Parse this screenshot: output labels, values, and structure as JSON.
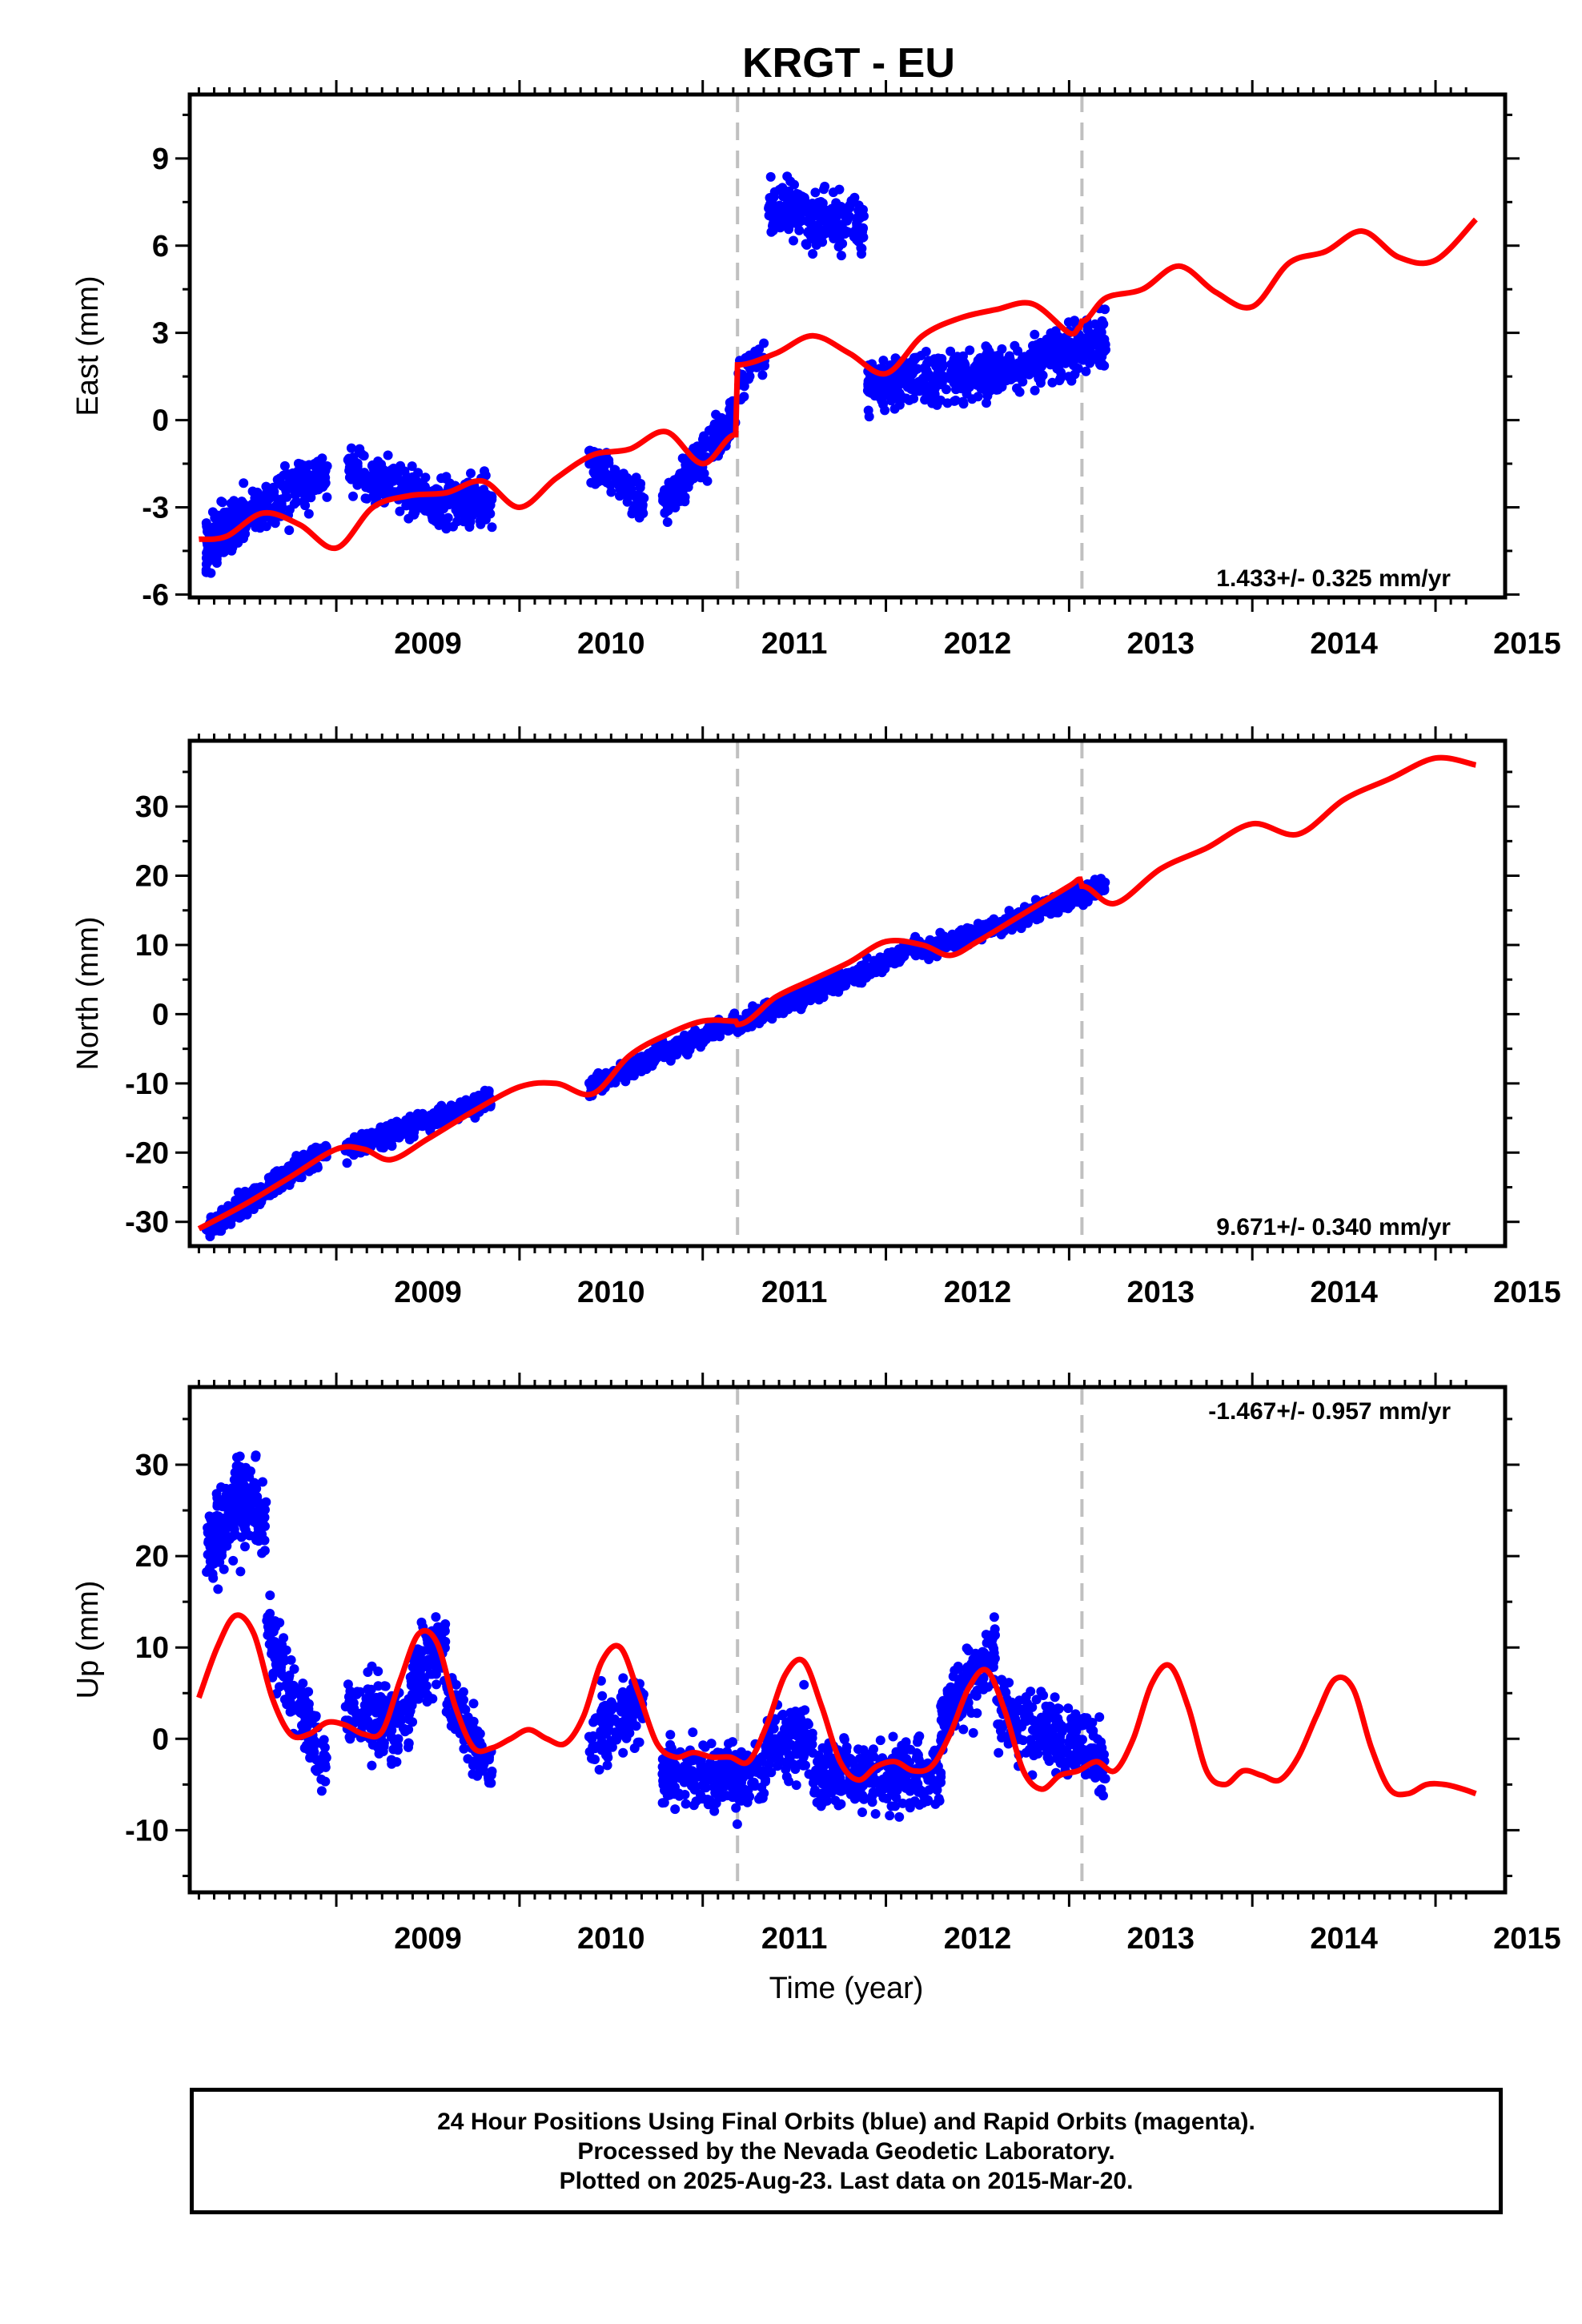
{
  "title": "KRGT - EU",
  "xlabel": "Time (year)",
  "caption": [
    "24 Hour Positions Using Final Orbits (blue) and Rapid Orbits (magenta).",
    "Processed by the Nevada Geodetic Laboratory.",
    "Plotted on 2025-Aug-23. Last data on 2015-Mar-20."
  ],
  "colors": {
    "final_orbits": "#0000ff",
    "model": "#ff0000",
    "equipment_change": "#c0c0c0",
    "frame": "#000000"
  },
  "chart_data": [
    {
      "type": "scatter",
      "ylabel": "East (mm)",
      "rate_label": "1.433+/- 0.325 mm/yr",
      "xlim": [
        2008.2,
        2015.38
      ],
      "ylim": [
        -6.1,
        11.2
      ],
      "x_ticks": [
        "2009",
        "2010",
        "2011",
        "2012",
        "2013",
        "2014",
        "2015"
      ],
      "y_ticks": [
        "-6",
        "-3",
        "0",
        "3",
        "6",
        "9"
      ],
      "grid": false,
      "equipment_changes": [
        2011.19,
        2013.07
      ],
      "model": {
        "name": "model",
        "x": [
          2008.25,
          2008.4,
          2008.6,
          2008.8,
          2009.0,
          2009.2,
          2009.4,
          2009.6,
          2009.8,
          2010.0,
          2010.2,
          2010.4,
          2010.6,
          2010.8,
          2011.0,
          2011.18,
          2011.19,
          2011.4,
          2011.6,
          2011.8,
          2012.0,
          2012.2,
          2012.4,
          2012.6,
          2012.8,
          2013.0,
          2013.06,
          2013.07,
          2013.2,
          2013.4,
          2013.6,
          2013.8,
          2014.0,
          2014.2,
          2014.4,
          2014.6,
          2014.8,
          2015.0,
          2015.22
        ],
        "y": [
          -4.1,
          -4.0,
          -3.2,
          -3.6,
          -4.4,
          -3.0,
          -2.6,
          -2.5,
          -2.1,
          -3.0,
          -2.0,
          -1.2,
          -1.0,
          -0.4,
          -1.5,
          -0.5,
          1.9,
          2.3,
          2.9,
          2.3,
          1.6,
          2.9,
          3.5,
          3.8,
          4.0,
          3.0,
          3.2,
          3.4,
          4.2,
          4.5,
          5.3,
          4.4,
          3.9,
          5.4,
          5.8,
          6.5,
          5.6,
          5.5,
          6.9
        ]
      },
      "segments": [
        {
          "x0": 2008.29,
          "x1": 2008.5,
          "y0": -4.4,
          "y1": -3.2,
          "spread": 1.5,
          "n": 160
        },
        {
          "x0": 2008.5,
          "x1": 2008.95,
          "y0": -3.2,
          "y1": -1.9,
          "spread": 1.3,
          "n": 200
        },
        {
          "x0": 2009.05,
          "x1": 2009.45,
          "y0": -1.6,
          "y1": -2.6,
          "spread": 1.3,
          "n": 150
        },
        {
          "x0": 2009.45,
          "x1": 2009.85,
          "y0": -2.7,
          "y1": -2.8,
          "spread": 1.2,
          "n": 190
        },
        {
          "x0": 2010.38,
          "x1": 2010.68,
          "y0": -1.3,
          "y1": -2.8,
          "spread": 1.1,
          "n": 110
        },
        {
          "x0": 2010.78,
          "x1": 2011.18,
          "y0": -2.8,
          "y1": 0.2,
          "spread": 1.1,
          "n": 180
        },
        {
          "x0": 2011.19,
          "x1": 2011.34,
          "y0": 1.5,
          "y1": 2.2,
          "spread": 1.0,
          "n": 40
        },
        {
          "x0": 2011.36,
          "x1": 2011.88,
          "y0": 7.3,
          "y1": 6.6,
          "spread": 1.5,
          "n": 230
        },
        {
          "x0": 2011.9,
          "x1": 2012.7,
          "y0": 1.2,
          "y1": 1.8,
          "spread": 1.3,
          "n": 380
        },
        {
          "x0": 2012.7,
          "x1": 2013.2,
          "y0": 1.8,
          "y1": 2.8,
          "spread": 1.3,
          "n": 230
        }
      ]
    },
    {
      "type": "scatter",
      "ylabel": "North (mm)",
      "rate_label": "9.671+/- 0.340 mm/yr",
      "xlim": [
        2008.2,
        2015.38
      ],
      "ylim": [
        -33.5,
        39.5
      ],
      "x_ticks": [
        "2009",
        "2010",
        "2011",
        "2012",
        "2013",
        "2014",
        "2015"
      ],
      "y_ticks": [
        "-30",
        "-20",
        "-10",
        "0",
        "10",
        "20",
        "30"
      ],
      "grid": false,
      "equipment_changes": [
        2011.19,
        2013.07
      ],
      "model": {
        "name": "model",
        "x": [
          2008.25,
          2008.5,
          2008.75,
          2009.0,
          2009.15,
          2009.3,
          2009.5,
          2009.75,
          2010.0,
          2010.2,
          2010.4,
          2010.6,
          2010.8,
          2011.0,
          2011.18,
          2011.19,
          2011.4,
          2011.6,
          2011.8,
          2012.0,
          2012.2,
          2012.35,
          2012.5,
          2012.75,
          2013.0,
          2013.06,
          2013.07,
          2013.25,
          2013.5,
          2013.75,
          2014.0,
          2014.25,
          2014.5,
          2014.75,
          2015.0,
          2015.22
        ],
        "y": [
          -31.0,
          -27.5,
          -23.5,
          -19.5,
          -19.5,
          -21.0,
          -18.0,
          -14.0,
          -10.5,
          -10.0,
          -11.5,
          -6.0,
          -3.0,
          -1.0,
          -1.0,
          -1.5,
          2.5,
          5.0,
          7.5,
          10.5,
          10.0,
          8.5,
          10.5,
          14.5,
          18.5,
          19.5,
          18.5,
          16.0,
          21.0,
          24.0,
          27.5,
          26.0,
          31.0,
          34.0,
          37.0,
          36.0
        ]
      },
      "segments": [
        {
          "x0": 2008.29,
          "x1": 2008.95,
          "y0": -31.0,
          "y1": -19.5,
          "spread": 2.4,
          "n": 320
        },
        {
          "x0": 2009.05,
          "x1": 2009.85,
          "y0": -19.5,
          "y1": -12.0,
          "spread": 2.2,
          "n": 340
        },
        {
          "x0": 2010.38,
          "x1": 2011.18,
          "y0": -10.5,
          "y1": -1.0,
          "spread": 2.0,
          "n": 340
        },
        {
          "x0": 2011.19,
          "x1": 2012.2,
          "y0": -1.5,
          "y1": 10.0,
          "spread": 2.0,
          "n": 420
        },
        {
          "x0": 2012.2,
          "x1": 2013.2,
          "y0": 9.0,
          "y1": 18.5,
          "spread": 2.0,
          "n": 380
        }
      ]
    },
    {
      "type": "scatter",
      "ylabel": "Up (mm)",
      "rate_label": "-1.467+/- 0.957 mm/yr",
      "xlim": [
        2008.2,
        2015.38
      ],
      "ylim": [
        -16.8,
        38.5
      ],
      "x_ticks": [
        "2009",
        "2010",
        "2011",
        "2012",
        "2013",
        "2014",
        "2015"
      ],
      "y_ticks": [
        "-10",
        "0",
        "10",
        "20",
        "30"
      ],
      "grid": false,
      "equipment_changes": [
        2011.19,
        2013.07
      ],
      "model": {
        "name": "model",
        "x": [
          2008.25,
          2008.35,
          2008.45,
          2008.55,
          2008.65,
          2008.75,
          2008.85,
          2008.95,
          2009.05,
          2009.15,
          2009.25,
          2009.35,
          2009.45,
          2009.55,
          2009.65,
          2009.75,
          2009.85,
          2009.95,
          2010.05,
          2010.15,
          2010.25,
          2010.35,
          2010.45,
          2010.55,
          2010.65,
          2010.75,
          2010.85,
          2010.95,
          2011.05,
          2011.15,
          2011.25,
          2011.35,
          2011.45,
          2011.55,
          2011.65,
          2011.75,
          2011.85,
          2011.95,
          2012.05,
          2012.15,
          2012.25,
          2012.35,
          2012.45,
          2012.55,
          2012.65,
          2012.75,
          2012.85,
          2012.95,
          2013.05,
          2013.15,
          2013.25,
          2013.35,
          2013.45,
          2013.55,
          2013.65,
          2013.75,
          2013.85,
          2013.95,
          2014.05,
          2014.15,
          2014.25,
          2014.35,
          2014.45,
          2014.55,
          2014.65,
          2014.75,
          2014.85,
          2014.95,
          2015.05,
          2015.15,
          2015.22
        ],
        "y": [
          4.5,
          10.0,
          13.5,
          11.5,
          4.5,
          0.5,
          0.5,
          1.8,
          1.5,
          0.5,
          0.8,
          6.5,
          11.5,
          10.5,
          3.5,
          -1.0,
          -1.0,
          0.0,
          1.0,
          0.0,
          -0.5,
          2.5,
          8.5,
          10.0,
          5.0,
          -0.5,
          -2.0,
          -1.5,
          -2.0,
          -2.0,
          -2.5,
          1.5,
          7.0,
          8.5,
          3.5,
          -2.5,
          -4.5,
          -3.0,
          -2.5,
          -3.5,
          -3.0,
          0.5,
          5.5,
          7.5,
          3.0,
          -3.5,
          -5.5,
          -4.0,
          -3.5,
          -2.5,
          -3.5,
          0.0,
          6.0,
          8.0,
          3.5,
          -3.5,
          -5.0,
          -3.5,
          -4.0,
          -4.5,
          -2.0,
          2.5,
          6.5,
          5.5,
          -1.0,
          -5.5,
          -6.0,
          -5.0,
          -5.0,
          -5.5,
          -6.0
        ]
      },
      "segments": [
        {
          "x0": 2008.29,
          "x1": 2008.45,
          "y0": 21.0,
          "y1": 25.0,
          "spread": 7.0,
          "n": 110
        },
        {
          "x0": 2008.45,
          "x1": 2008.62,
          "y0": 27.0,
          "y1": 24.0,
          "spread": 8.0,
          "n": 100
        },
        {
          "x0": 2008.62,
          "x1": 2008.95,
          "y0": 12.0,
          "y1": -3.0,
          "spread": 5.5,
          "n": 150
        },
        {
          "x0": 2009.05,
          "x1": 2009.4,
          "y0": 2.5,
          "y1": 1.5,
          "spread": 6.0,
          "n": 160
        },
        {
          "x0": 2009.4,
          "x1": 2009.6,
          "y0": 6.0,
          "y1": 11.0,
          "spread": 6.0,
          "n": 120
        },
        {
          "x0": 2009.6,
          "x1": 2009.85,
          "y0": 5.0,
          "y1": -4.0,
          "spread": 5.5,
          "n": 110
        },
        {
          "x0": 2010.38,
          "x1": 2010.68,
          "y0": 0.5,
          "y1": 3.5,
          "spread": 6.0,
          "n": 120
        },
        {
          "x0": 2010.78,
          "x1": 2011.34,
          "y0": -4.0,
          "y1": -4.0,
          "spread": 5.5,
          "n": 260
        },
        {
          "x0": 2011.34,
          "x1": 2011.6,
          "y0": -1.0,
          "y1": 0.0,
          "spread": 5.5,
          "n": 120
        },
        {
          "x0": 2011.6,
          "x1": 2012.3,
          "y0": -4.0,
          "y1": -4.0,
          "spread": 5.5,
          "n": 300
        },
        {
          "x0": 2012.3,
          "x1": 2012.6,
          "y0": 2.0,
          "y1": 10.0,
          "spread": 6.0,
          "n": 160
        },
        {
          "x0": 2012.6,
          "x1": 2013.2,
          "y0": 3.0,
          "y1": -2.0,
          "spread": 6.0,
          "n": 260
        }
      ]
    }
  ]
}
